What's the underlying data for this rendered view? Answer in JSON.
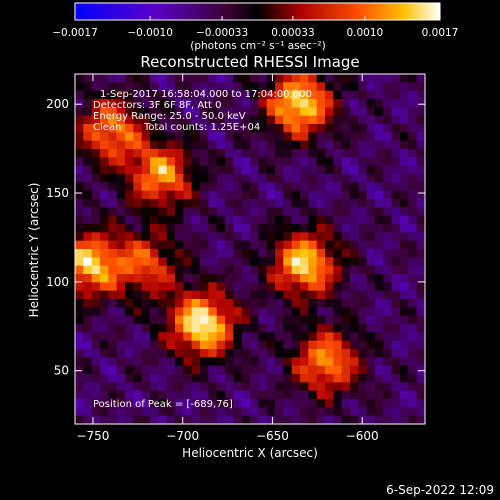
{
  "chart_data": {
    "type": "heatmap",
    "title": "Reconstructed RHESSI Image",
    "xlabel": "Heliocentric X (arcsec)",
    "ylabel": "Heliocentric Y (arcsec)",
    "xlim": [
      -760,
      -565
    ],
    "ylim": [
      20,
      217
    ],
    "x_ticks": [
      -750,
      -700,
      -650,
      -600
    ],
    "y_ticks": [
      50,
      100,
      150,
      200
    ],
    "colorbar": {
      "range": [
        -0.0017,
        0.0017
      ],
      "ticks": [
        -0.0017,
        -0.001,
        -0.00033,
        0.00033,
        0.001,
        0.0017
      ],
      "tick_labels": [
        "-0.0017",
        "-0.0010",
        "-0.00033",
        "0.00033",
        "0.0010",
        "0.0017"
      ],
      "units_label": "(photons cm⁻² s⁻¹ asec⁻²)"
    },
    "annotations": {
      "time_range": "1-Sep-2017 16:58:04.000 to 17:04:00.000",
      "detectors": "Detectors: 3F 6F 8F, Att 0",
      "energy": "Energy Range: 25.0 - 50.0 keV",
      "method": "Clean",
      "counts": "Total counts: 1.25E+04",
      "peak": "Position of Peak = [-689,76]"
    },
    "sources": [
      {
        "x": -689,
        "y": 76,
        "value": 0.0017
      },
      {
        "x": -712,
        "y": 160,
        "value": 0.0012
      },
      {
        "x": -740,
        "y": 185,
        "value": 0.0011
      },
      {
        "x": -635,
        "y": 200,
        "value": 0.0016
      },
      {
        "x": -632,
        "y": 110,
        "value": 0.0015
      },
      {
        "x": -752,
        "y": 110,
        "value": 0.0014
      },
      {
        "x": -620,
        "y": 55,
        "value": 0.0012
      },
      {
        "x": -720,
        "y": 110,
        "value": 0.0008
      }
    ]
  },
  "timestamp": "6-Sep-2022 12:09"
}
